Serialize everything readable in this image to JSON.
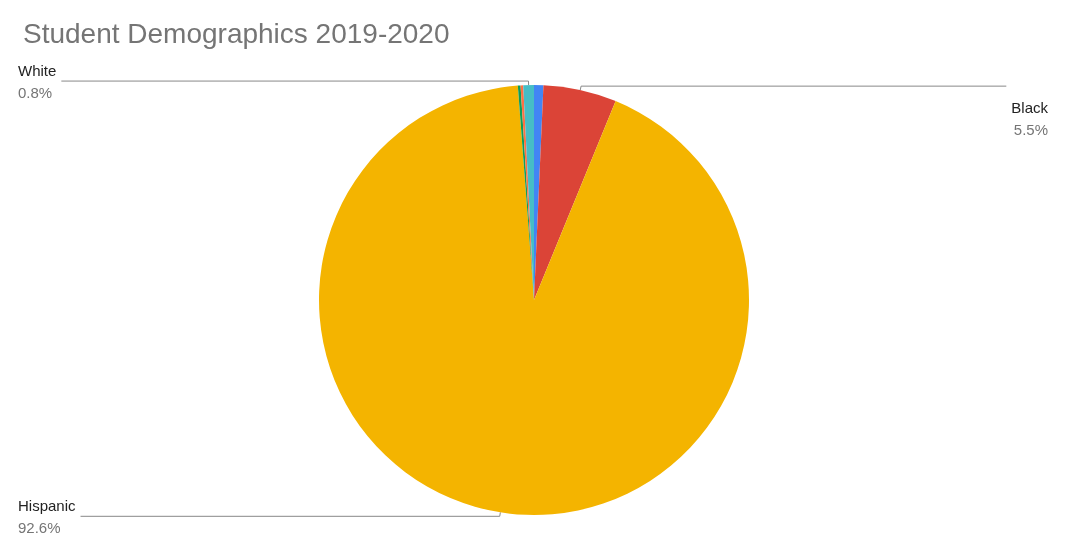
{
  "chart_data": {
    "type": "pie",
    "title": "Student Demographics 2019-2020",
    "categories": [
      null,
      "Black",
      "Hispanic",
      null,
      null,
      "White"
    ],
    "values": [
      0.7,
      5.5,
      92.6,
      0.2,
      0.2,
      0.8
    ],
    "value_labels": [
      null,
      "5.5%",
      "92.6%",
      null,
      null,
      "0.8%"
    ],
    "colors": [
      "#4285f4",
      "#db4437",
      "#f4b400",
      "#0f9d58",
      "#ff7043",
      "#46bdc6"
    ],
    "legend": false
  }
}
